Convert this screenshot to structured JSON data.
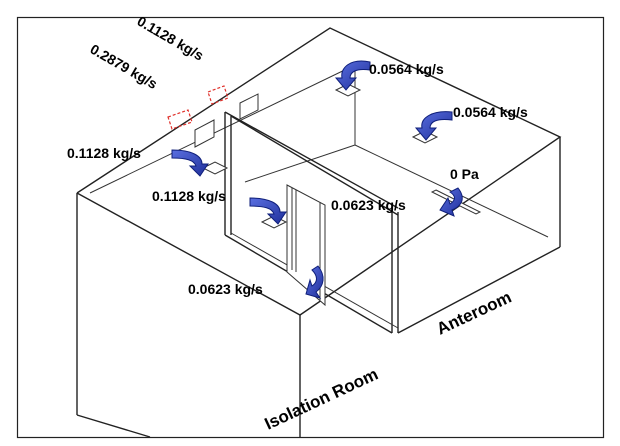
{
  "labels": {
    "supply_top_angled": "0.1128 kg/s",
    "exhaust_angled": "0.2879 kg/s",
    "anteroom_supply_1": "0.0564 kg/s",
    "anteroom_supply_2": "0.0564 kg/s",
    "isolation_supply_left": "0.1128 kg/s",
    "isolation_supply_center": "0.1128 kg/s",
    "anteroom_pressure": "0 Pa",
    "door_flow_anteroom": "0.0623 kg/s",
    "door_flow_isolation": "0.0623 kg/s"
  },
  "rooms": {
    "isolation": "Isolation Room",
    "anteroom": "Anteroom"
  },
  "colors": {
    "arrow_fill": "#2b3fb0",
    "arrow_stroke": "#0f1f7a",
    "exhaust_marker": "#e0302a"
  },
  "icons": [
    "curved-arrow-icon",
    "vent-icon",
    "exhaust-marker-icon"
  ]
}
